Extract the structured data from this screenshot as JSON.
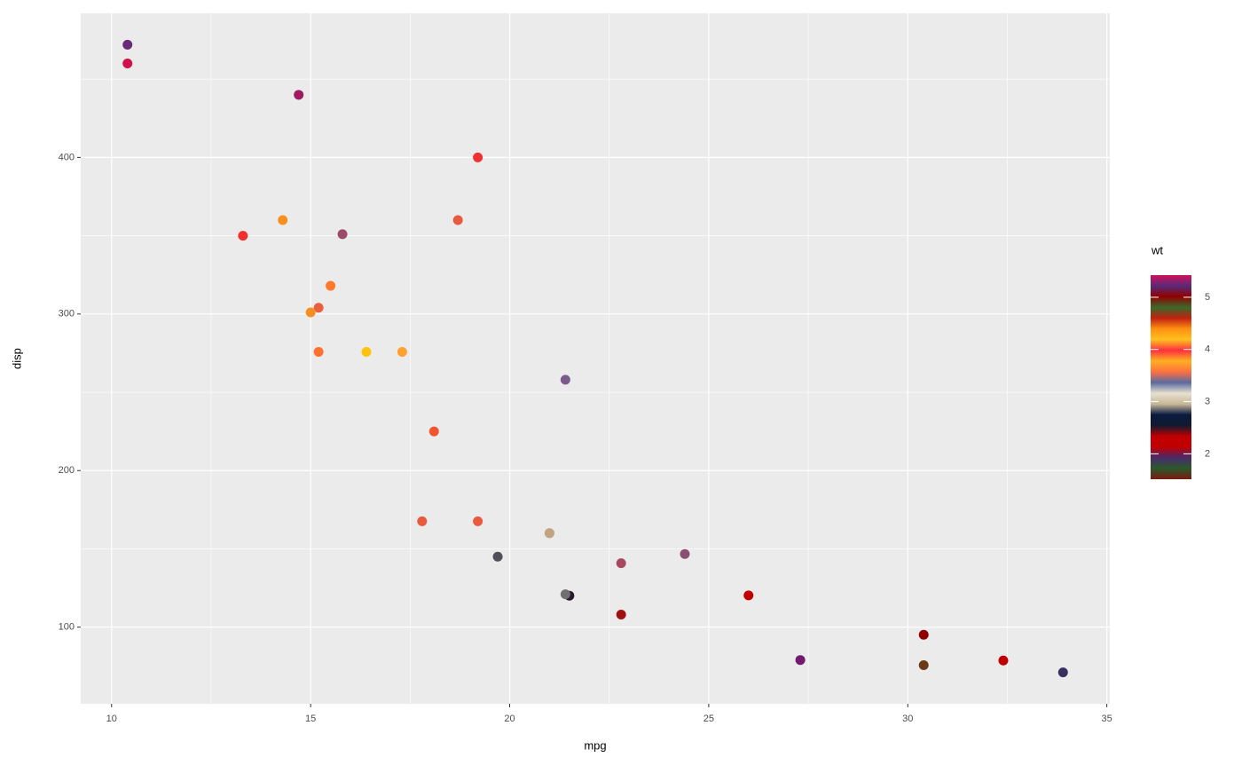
{
  "chart_data": {
    "type": "scatter",
    "x_label": "mpg",
    "y_label": "disp",
    "x": [
      21.0,
      21.0,
      22.8,
      21.4,
      18.7,
      18.1,
      14.3,
      24.4,
      22.8,
      19.2,
      17.8,
      16.4,
      17.3,
      15.2,
      10.4,
      10.4,
      14.7,
      32.4,
      30.4,
      33.9,
      21.5,
      15.5,
      15.2,
      13.3,
      19.2,
      27.3,
      26.0,
      30.4,
      15.8,
      19.7,
      15.0,
      21.4
    ],
    "y": [
      160,
      160,
      108,
      258,
      360,
      225,
      360,
      146.7,
      140.8,
      167.6,
      167.6,
      275.8,
      275.8,
      275.8,
      472,
      460,
      440,
      78.7,
      75.7,
      71.1,
      120.1,
      318,
      304,
      350,
      400,
      79,
      120.3,
      95.1,
      351,
      145,
      301,
      121
    ],
    "wt": [
      2.62,
      2.875,
      2.32,
      3.215,
      3.44,
      3.46,
      3.57,
      3.19,
      3.15,
      3.44,
      3.44,
      4.07,
      3.73,
      3.78,
      5.25,
      5.424,
      5.345,
      2.2,
      1.615,
      1.835,
      2.465,
      3.52,
      3.435,
      3.84,
      3.845,
      1.935,
      2.14,
      1.513,
      3.17,
      2.77,
      3.57,
      2.78
    ],
    "point_colors": [
      "#c8a882",
      "#c4a480",
      "#a01010",
      "#7a5a8a",
      "#e85a40",
      "#f05530",
      "#f5901e",
      "#8a4f70",
      "#a84860",
      "#e85a40",
      "#e85a40",
      "#ffc20e",
      "#ffa030",
      "#ff7030",
      "#6a2a7a",
      "#d0104a",
      "#a01a60",
      "#c00000",
      "#6a3a1a",
      "#3a3060",
      "#2a1a30",
      "#ff7a28",
      "#e86040",
      "#f03030",
      "#f03030",
      "#701a70",
      "#c00000",
      "#900000",
      "#9a4a6a",
      "#505058",
      "#f59020",
      "#707070"
    ],
    "xlim": [
      9.225,
      35.075
    ],
    "xticks": [
      10,
      15,
      20,
      25,
      30,
      35
    ],
    "xminor": [
      12.5,
      17.5,
      22.5,
      27.5,
      32.5
    ],
    "ylim": [
      51.055,
      492.045
    ],
    "yticks": [
      100,
      200,
      300,
      400
    ],
    "yminor": [
      150,
      250,
      350,
      450
    ],
    "grid": true,
    "colorbar": {
      "title": "wt",
      "limits": [
        1.513,
        5.424
      ],
      "ticks": [
        2,
        3,
        4,
        5
      ],
      "colors": [
        "#7a1a10",
        "#2a5a2a",
        "#4a2a6a",
        "#c00000",
        "#c00000",
        "#101a30",
        "#0a1a40",
        "#c8b898",
        "#e8e0d0",
        "#5a6aa0",
        "#ff7040",
        "#ffb020",
        "#ff3040",
        "#ffc020",
        "#ff9010",
        "#c02010",
        "#3a6a2a",
        "#900000",
        "#5a2a7a",
        "#d0105a"
      ]
    }
  }
}
